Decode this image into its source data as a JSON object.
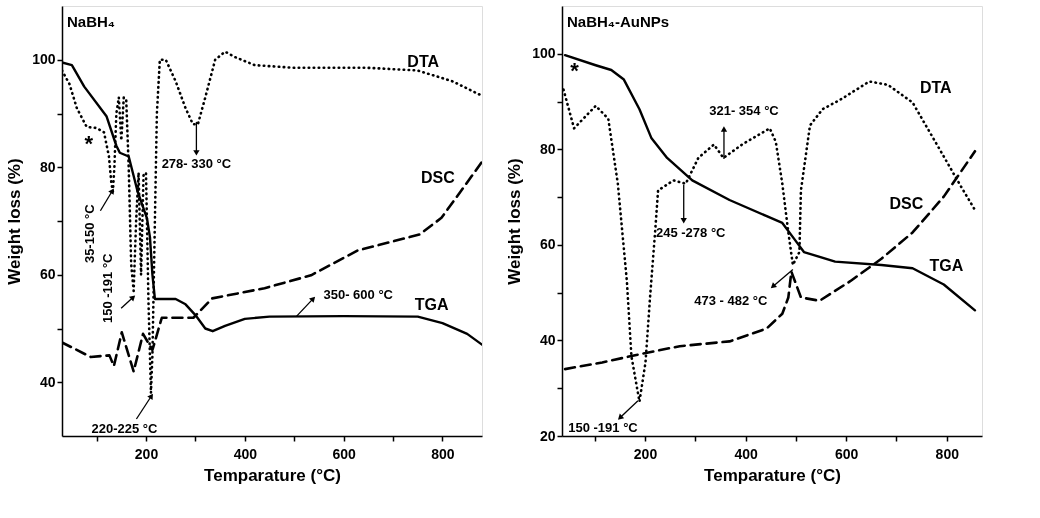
{
  "chart_data": [
    {
      "type": "line",
      "title": "NaBH₄",
      "xlabel": "Temparature (°C)",
      "ylabel": "Weight loss (%)",
      "xlim": [
        30,
        880
      ],
      "ylim": [
        30,
        110
      ],
      "xticks": [
        {
          "value": 100,
          "label": null
        },
        200,
        {
          "value": 300,
          "label": null
        },
        400,
        {
          "value": 500,
          "label": null
        },
        600,
        {
          "value": 700,
          "label": null
        },
        800
      ],
      "yticks": [
        40,
        {
          "value": 50,
          "label": null
        },
        60,
        {
          "value": 70,
          "label": null
        },
        80,
        {
          "value": 90,
          "label": null
        },
        100
      ],
      "grid": false,
      "series": [
        {
          "name": "DTA",
          "color": "#000000",
          "line_style": "dotted",
          "x": [
            30,
            45,
            60,
            80,
            100,
            115,
            125,
            130,
            133,
            136,
            140,
            145,
            150,
            155,
            160,
            165,
            170,
            175,
            180,
            185,
            190,
            195,
            200,
            205,
            210,
            213,
            218,
            222,
            228,
            240,
            260,
            280,
            295,
            305,
            320,
            340,
            360,
            380,
            420,
            500,
            650,
            750,
            820,
            880
          ],
          "values": [
            98,
            95.5,
            91,
            87.5,
            87.3,
            86.5,
            82,
            77,
            75.5,
            80,
            90,
            93,
            85,
            93,
            92.5,
            80,
            62,
            57,
            70,
            79,
            60,
            78.5,
            79,
            55,
            38,
            45,
            70,
            90,
            100,
            100,
            96,
            91,
            88,
            88,
            93,
            100,
            101.5,
            100.5,
            99,
            98.5,
            98.5,
            98,
            96,
            93.3
          ]
        },
        {
          "name": "DSC",
          "color": "#000000",
          "line_style": "dashed",
          "x": [
            30,
            88,
            126,
            135,
            151,
            175,
            194,
            213,
            232,
            296,
            334,
            440,
            534,
            628,
            754,
            798,
            836,
            880
          ],
          "values": [
            47.4,
            44.7,
            45,
            43,
            49.3,
            42,
            49,
            46,
            52,
            52,
            55.6,
            57.5,
            59.9,
            64.5,
            67.5,
            70.6,
            75.4,
            81
          ]
        },
        {
          "name": "TGA",
          "color": "#000000",
          "line_style": "solid",
          "x": [
            30,
            50,
            75,
            120,
            140,
            147,
            165,
            183,
            202,
            208,
            213,
            218,
            240,
            260,
            280,
            300,
            320,
            335,
            360,
            400,
            450,
            600,
            750,
            800,
            850,
            880
          ],
          "values": [
            99.5,
            99,
            95,
            89.5,
            84,
            82.7,
            82,
            75.5,
            70.5,
            67,
            60,
            55.5,
            55.5,
            55.5,
            54.5,
            52.5,
            50,
            49.5,
            50.5,
            51.8,
            52.2,
            52.3,
            52.2,
            51,
            49,
            47
          ]
        }
      ],
      "annotations": [
        "*",
        {
          "text": "35-150 °C",
          "x": 132,
          "y": 76
        },
        {
          "text": "150 -191 °C",
          "x": 178,
          "y": 56
        },
        {
          "text": "220-225 °C",
          "x": 213,
          "y": 38
        },
        {
          "text": "278- 330 °C",
          "x": 302,
          "y": 89
        },
        {
          "text": "350- 600 °C",
          "x": 504,
          "y": 52.2
        }
      ]
    },
    {
      "type": "line",
      "title": "NaBH₄-AuNPs",
      "xlabel": "Temparature (°C)",
      "ylabel": "Weight loss (%)",
      "xlim": [
        35,
        870
      ],
      "ylim": [
        20,
        110
      ],
      "xticks": [
        {
          "value": 100,
          "label": null
        },
        200,
        {
          "value": 300,
          "label": null
        },
        400,
        {
          "value": 500,
          "label": null
        },
        600,
        {
          "value": 700,
          "label": null
        },
        800
      ],
      "yticks": [
        20,
        {
          "value": 30,
          "label": null
        },
        40,
        {
          "value": 50,
          "label": null
        },
        60,
        {
          "value": 70,
          "label": null
        },
        80,
        {
          "value": 90,
          "label": null
        },
        100
      ],
      "grid": false,
      "series": [
        {
          "name": "DTA",
          "color": "#000000",
          "line_style": "dotted",
          "x": [
            38,
            59,
            102,
            127,
            146,
            158,
            164,
            173,
            189,
            201,
            210,
            220,
            226,
            257,
            281,
            306,
            337,
            356,
            393,
            448,
            460,
            473,
            485,
            494,
            507,
            510,
            528,
            553,
            590,
            646,
            683,
            732,
            788,
            825,
            856
          ],
          "values": [
            92.5,
            84.4,
            89.1,
            86.4,
            72.8,
            59.2,
            52.4,
            36.7,
            27.2,
            35.4,
            49,
            62.6,
            71.4,
            73.5,
            72.8,
            78.2,
            81,
            78.2,
            81,
            84.4,
            81.6,
            72.8,
            62.6,
            55.8,
            58.5,
            71.4,
            85,
            88.4,
            90.5,
            94.2,
            93.5,
            89.8,
            79.6,
            72.8,
            67.3
          ]
        },
        {
          "name": "DSC",
          "color": "#000000",
          "line_style": "dashed",
          "x": [
            41,
            115,
            189,
            269,
            368,
            442,
            473,
            485,
            491,
            510,
            547,
            608,
            670,
            732,
            794,
            856
          ],
          "values": [
            34,
            35.4,
            37.1,
            38.8,
            39.8,
            42.5,
            45.6,
            49,
            54.4,
            49,
            48.3,
            52.4,
            57.1,
            62.6,
            70.1,
            79.6
          ]
        },
        {
          "name": "TGA",
          "color": "#000000",
          "line_style": "solid",
          "x": [
            41,
            102,
            133,
            158,
            189,
            213,
            244,
            294,
            368,
            442,
            473,
            497,
            516,
            578,
            670,
            732,
            794,
            856
          ],
          "values": [
            99.7,
            97.6,
            96.6,
            94.6,
            88.4,
            82.3,
            78.2,
            73.5,
            69.4,
            66,
            64.6,
            61.2,
            58.5,
            56.5,
            55.8,
            55.1,
            51.7,
            46.3
          ]
        }
      ],
      "annotations": [
        "*",
        {
          "text": "321- 354 °C",
          "x": 357,
          "y": 78
        },
        {
          "text": "245 -278 °C",
          "x": 277,
          "y": 73
        },
        {
          "text": "473 - 482 °C",
          "x": 494,
          "y": 55.5
        },
        {
          "text": "150 -191 °C",
          "x": 190,
          "y": 28
        }
      ]
    }
  ]
}
